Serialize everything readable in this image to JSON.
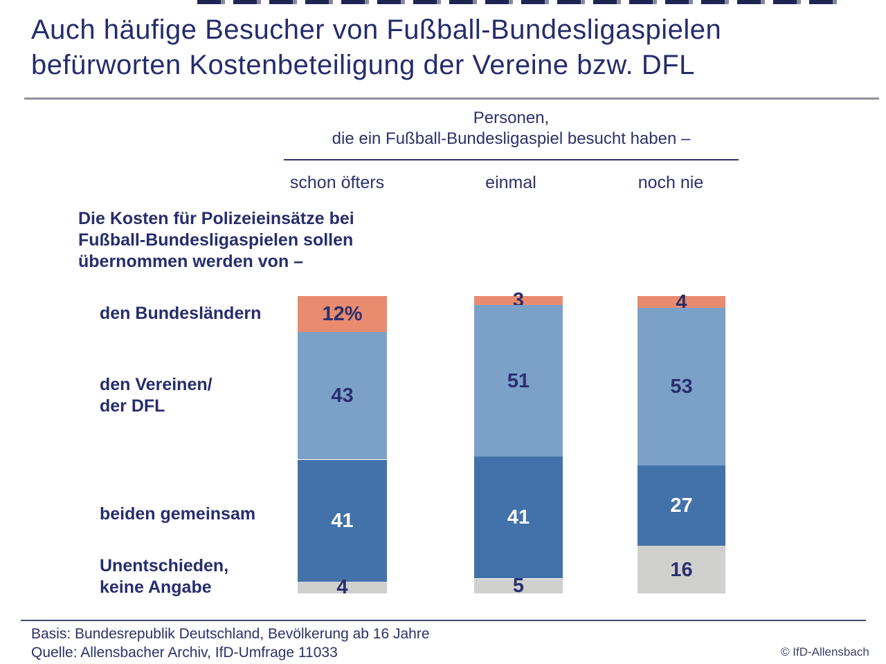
{
  "title": {
    "line1": "Auch häufige Besucher von Fußball-Bundesligaspielen",
    "line2": "befürworten Kostenbeteiligung der Vereine bzw. DFL"
  },
  "header": {
    "line1": "Personen,",
    "line2": "die ein Fußball-Bundesligaspiel besucht haben –"
  },
  "question": {
    "line1": "Die Kosten für Polizeieinsätze bei",
    "line2": "Fußball-Bundesligaspielen sollen",
    "line3": "übernommen werden von –"
  },
  "row_labels": [
    {
      "line1": "den Bundesländern",
      "line2": ""
    },
    {
      "line1": "den Vereinen/",
      "line2": "der DFL"
    },
    {
      "line1": "beiden gemeinsam",
      "line2": ""
    },
    {
      "line1": "Unentschieden,",
      "line2": "keine Angabe"
    }
  ],
  "footer": {
    "basis": "Basis: Bundesrepublik Deutschland, Bevölkerung ab 16 Jahre",
    "quelle": "Quelle: Allensbacher Archiv, IfD-Umfrage 11033",
    "copyright": "© IfD-Allensbach"
  },
  "colors": {
    "navy_text": "#272d6c",
    "salmon": "#e88b6f",
    "light_blue": "#7ba1c9",
    "dark_blue": "#4372aa",
    "gray": "#d0d0ce"
  },
  "chart_data": {
    "type": "bar",
    "subtype": "stacked-vertical-100pct",
    "title": "Auch häufige Besucher von Fußball-Bundesligaspielen befürworten Kostenbeteiligung der Vereine bzw. DFL",
    "group_header": "Personen, die ein Fußball-Bundesligaspiel besucht haben –",
    "question": "Die Kosten für Polizeieinsätze bei Fußball-Bundesligaspielen sollen übernommen werden von –",
    "unit": "percent",
    "ylim": [
      0,
      100
    ],
    "grid": false,
    "legend_position": "left-row-labels",
    "categories": [
      "schon öfters",
      "einmal",
      "noch nie"
    ],
    "rows": [
      "den Bundesländern",
      "den Vereinen/der DFL",
      "beiden gemeinsam",
      "Unentschieden, keine Angabe"
    ],
    "series": [
      {
        "name": "den Bundesländern",
        "color": "#e88b6f",
        "values": [
          12,
          3,
          4
        ]
      },
      {
        "name": "den Vereinen/der DFL",
        "color": "#7ba1c9",
        "values": [
          43,
          51,
          53
        ]
      },
      {
        "name": "beiden gemeinsam",
        "color": "#4372aa",
        "values": [
          41,
          41,
          27
        ]
      },
      {
        "name": "Unentschieden, keine Angabe",
        "color": "#d0d0ce",
        "values": [
          4,
          5,
          16
        ]
      }
    ],
    "value_labels": [
      [
        "12%",
        "43",
        "41",
        "4"
      ],
      [
        "3",
        "51",
        "41",
        "5"
      ],
      [
        "4",
        "53",
        "27",
        "16"
      ]
    ],
    "label_colors": [
      "navy",
      "navy",
      "white",
      "navy"
    ],
    "segment_colors": [
      "#e88b6f",
      "#7ba1c9",
      "#4372aa",
      "#d0d0ce"
    ]
  }
}
